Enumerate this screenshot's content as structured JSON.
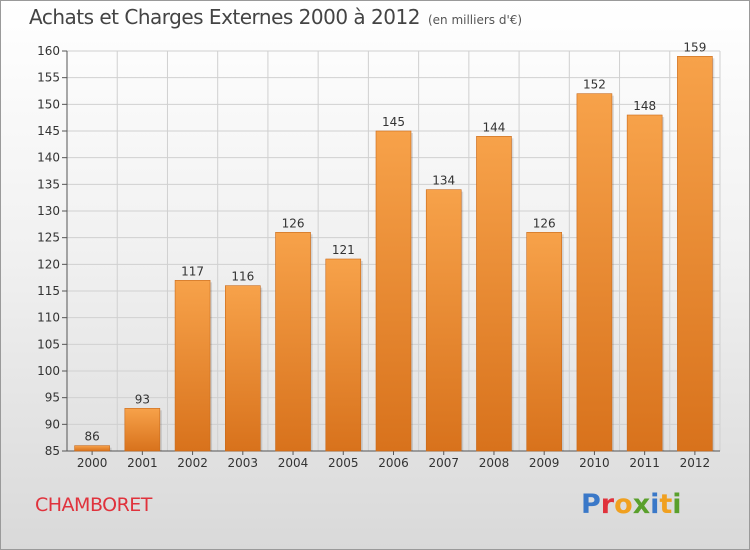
{
  "header": {
    "title": "Achats et Charges Externes 2000 à 2012",
    "subtitle": "(en milliers d'€)"
  },
  "commune": "CHAMBORET",
  "logo": {
    "text": "Proxiti",
    "letter_colors": [
      "#3a78c8",
      "#e0323c",
      "#f0a020",
      "#5aa02c",
      "#3a78c8",
      "#f0a020",
      "#5aa02c"
    ]
  },
  "colors": {
    "bar_top": "#f7a24a",
    "bar_bottom": "#d8721c",
    "grid": "#d0d0d0",
    "title": "#444444",
    "commune": "#e0323c"
  },
  "chart_data": {
    "type": "bar",
    "title": "Achats et Charges Externes 2000 à 2012",
    "subtitle": "(en milliers d'€)",
    "xlabel": "",
    "ylabel": "",
    "categories": [
      "2000",
      "2001",
      "2002",
      "2003",
      "2004",
      "2005",
      "2006",
      "2007",
      "2008",
      "2009",
      "2010",
      "2011",
      "2012"
    ],
    "values": [
      86,
      93,
      117,
      116,
      126,
      121,
      145,
      134,
      144,
      126,
      152,
      148,
      159
    ],
    "data_labels": [
      "86",
      "93",
      "117",
      "116",
      "126",
      "121",
      "145",
      "134",
      "144",
      "126",
      "152",
      "148",
      "159"
    ],
    "ylim": [
      85,
      160
    ],
    "yticks": [
      85,
      90,
      95,
      100,
      105,
      110,
      115,
      120,
      125,
      130,
      135,
      140,
      145,
      150,
      155,
      160
    ],
    "ytick_labels": [
      "85",
      "90",
      "95",
      "100",
      "105",
      "110",
      "115",
      "120",
      "125",
      "130",
      "135",
      "140",
      "145",
      "150",
      "155",
      "160"
    ],
    "grid": true,
    "legend": "none"
  }
}
